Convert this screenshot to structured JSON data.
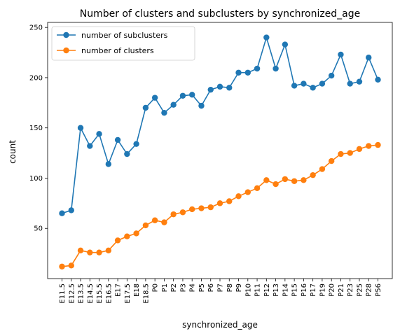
{
  "chart_data": {
    "type": "line",
    "title": "Number of clusters and subclusters by synchronized_age",
    "xlabel": "synchronized_age",
    "ylabel": "count",
    "categories": [
      "E11.5",
      "E12.5",
      "E13.5",
      "E14.5",
      "E15.5",
      "E16.5",
      "E17",
      "E17.5",
      "E18",
      "E18.5",
      "P0",
      "P1",
      "P2",
      "P3",
      "P4",
      "P5",
      "P6",
      "P7",
      "P8",
      "P9",
      "P10",
      "P11",
      "P12",
      "P13",
      "P14",
      "P15",
      "P16",
      "P17",
      "P19",
      "P20",
      "P21",
      "P23",
      "P25",
      "P28",
      "P56"
    ],
    "ylim": [
      0,
      255
    ],
    "yticks": [
      50,
      100,
      150,
      200,
      250
    ],
    "grid": false,
    "legend_position": "top-left",
    "series": [
      {
        "name": "number of subclusters",
        "color": "#1f77b4",
        "values": [
          65,
          68,
          150,
          132,
          144,
          114,
          138,
          124,
          134,
          170,
          180,
          165,
          173,
          182,
          183,
          172,
          188,
          191,
          190,
          205,
          205,
          209,
          240,
          209,
          233,
          192,
          194,
          190,
          194,
          202,
          223,
          194,
          196,
          220,
          198
        ]
      },
      {
        "name": "number of clusters",
        "color": "#ff7f0e",
        "values": [
          12,
          13,
          28,
          26,
          26,
          28,
          38,
          42,
          45,
          53,
          58,
          56,
          64,
          66,
          69,
          70,
          71,
          75,
          77,
          82,
          86,
          90,
          98,
          94,
          99,
          97,
          98,
          103,
          109,
          117,
          124,
          125,
          129,
          132,
          133
        ]
      }
    ]
  }
}
